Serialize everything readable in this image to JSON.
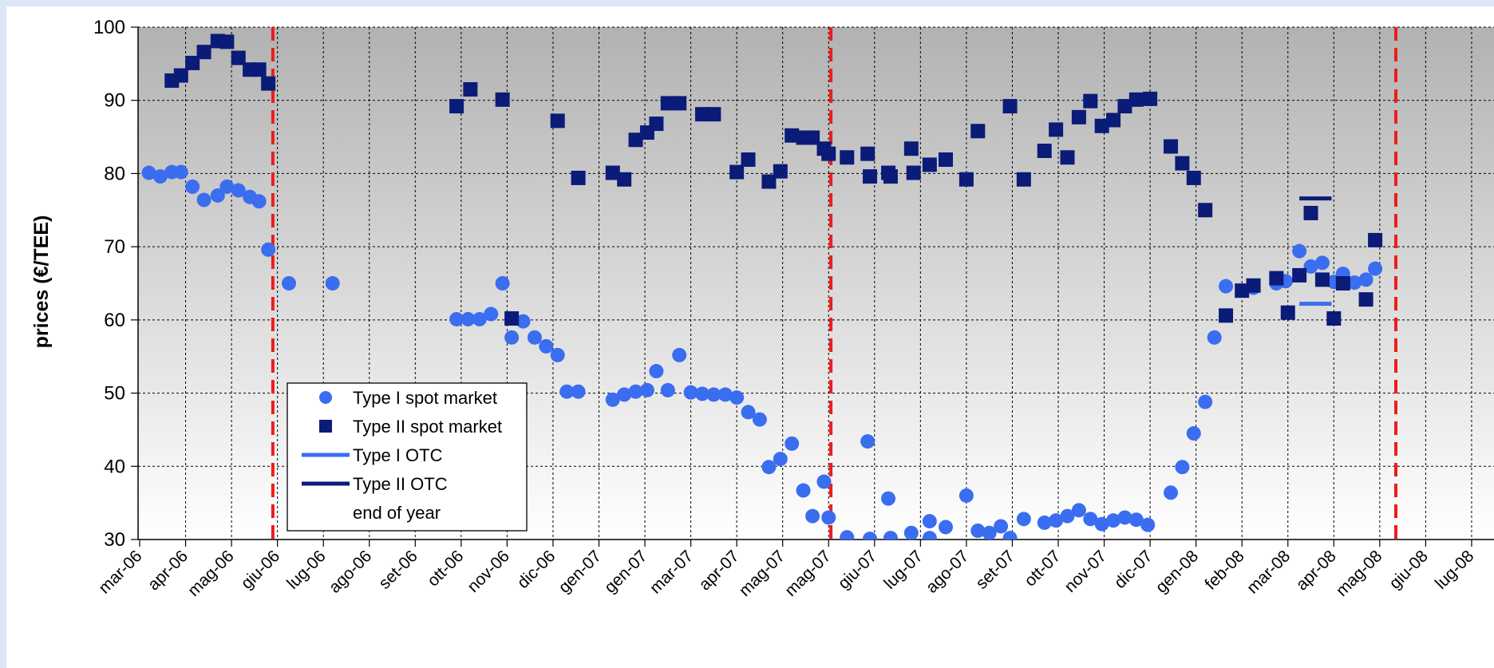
{
  "chart_data": {
    "type": "scatter",
    "title": "",
    "ylabel": "prices (€/TEE)",
    "xlabel": "",
    "ylim": [
      30,
      100
    ],
    "yticks": [
      30,
      40,
      50,
      60,
      70,
      80,
      90,
      100
    ],
    "grid": true,
    "legend_position": "bottom-left",
    "x_categories": [
      "mar-06",
      "apr-06",
      "mag-06",
      "giu-06",
      "lug-06",
      "ago-06",
      "set-06",
      "ott-06",
      "nov-06",
      "dic-06",
      "gen-07",
      "gen-07",
      "mar-07",
      "apr-07",
      "mag-07",
      "mag-07",
      "giu-07",
      "lug-07",
      "ago-07",
      "set-07",
      "ott-07",
      "nov-07",
      "dic-07",
      "gen-08",
      "feb-08",
      "mar-08",
      "apr-08",
      "mag-08",
      "giu-08",
      "lug-08"
    ],
    "colors": {
      "type1": "#3a6df0",
      "type2": "#0b1b78",
      "end_of_year": "#ee1c1c",
      "plot_top": "#b2b2b2",
      "plot_bottom": "#ffffff"
    },
    "legend": [
      {
        "label": "Type I spot market",
        "marker": "circle",
        "color": "#3a6df0"
      },
      {
        "label": "Type II spot market",
        "marker": "square",
        "color": "#0b1b78"
      },
      {
        "label": "Type I OTC",
        "marker": "line",
        "color": "#3a6df0"
      },
      {
        "label": "Type II OTC",
        "marker": "line",
        "color": "#0b1b78"
      },
      {
        "label": "end of year",
        "marker": "none",
        "color": "#ee1c1c"
      }
    ],
    "end_of_year_x": [
      2.9,
      15.05,
      27.35
    ],
    "series": [
      {
        "name": "Type I spot market",
        "marker": "circle",
        "points": [
          [
            0.2,
            80.1
          ],
          [
            0.45,
            79.6
          ],
          [
            0.7,
            80.2
          ],
          [
            0.9,
            80.2
          ],
          [
            1.15,
            78.2
          ],
          [
            1.4,
            76.4
          ],
          [
            1.7,
            77
          ],
          [
            1.9,
            78.2
          ],
          [
            2.15,
            77.7
          ],
          [
            2.4,
            76.8
          ],
          [
            2.6,
            76.2
          ],
          [
            2.8,
            69.6
          ],
          [
            3.25,
            65
          ],
          [
            4.2,
            65
          ],
          [
            6.9,
            60.1
          ],
          [
            7.15,
            60.1
          ],
          [
            7.4,
            60.1
          ],
          [
            7.65,
            60.8
          ],
          [
            7.9,
            65
          ],
          [
            8.1,
            57.6
          ],
          [
            8.35,
            59.8
          ],
          [
            8.6,
            57.6
          ],
          [
            8.85,
            56.4
          ],
          [
            9.1,
            55.2
          ],
          [
            9.3,
            50.2
          ],
          [
            9.55,
            50.2
          ],
          [
            10.3,
            49.1
          ],
          [
            10.55,
            49.8
          ],
          [
            10.8,
            50.2
          ],
          [
            11.05,
            50.4
          ],
          [
            11.25,
            53
          ],
          [
            11.5,
            50.4
          ],
          [
            11.75,
            55.2
          ],
          [
            12,
            50.1
          ],
          [
            12.25,
            49.9
          ],
          [
            12.5,
            49.8
          ],
          [
            12.75,
            49.8
          ],
          [
            13,
            49.4
          ],
          [
            13.25,
            47.4
          ],
          [
            13.5,
            46.4
          ],
          [
            13.7,
            39.9
          ],
          [
            13.95,
            41
          ],
          [
            14.2,
            43.1
          ],
          [
            14.45,
            36.7
          ],
          [
            14.65,
            33.2
          ],
          [
            14.9,
            37.9
          ],
          [
            15.0,
            33
          ],
          [
            15.4,
            30.3
          ],
          [
            15.85,
            43.4
          ],
          [
            15.9,
            30.1
          ],
          [
            16.3,
            35.6
          ],
          [
            16.35,
            30.2
          ],
          [
            16.8,
            30.9
          ],
          [
            17.2,
            32.5
          ],
          [
            17.2,
            30.2
          ],
          [
            17.55,
            31.7
          ],
          [
            18.0,
            36
          ],
          [
            18.25,
            31.2
          ],
          [
            18.5,
            30.9
          ],
          [
            18.75,
            31.8
          ],
          [
            18.95,
            30.2
          ],
          [
            19.25,
            32.8
          ],
          [
            19.7,
            32.3
          ],
          [
            19.95,
            32.6
          ],
          [
            20.2,
            33.2
          ],
          [
            20.45,
            34
          ],
          [
            20.7,
            32.8
          ],
          [
            20.95,
            32.1
          ],
          [
            21.2,
            32.6
          ],
          [
            21.45,
            33
          ],
          [
            21.7,
            32.7
          ],
          [
            21.95,
            32
          ],
          [
            22.45,
            36.4
          ],
          [
            22.7,
            39.9
          ],
          [
            22.95,
            44.5
          ],
          [
            23.2,
            48.8
          ],
          [
            23.4,
            57.6
          ],
          [
            23.65,
            64.6
          ],
          [
            24.25,
            64.4
          ],
          [
            24.75,
            65
          ],
          [
            24.95,
            65.3
          ],
          [
            25.25,
            69.4
          ],
          [
            25.5,
            67.3
          ],
          [
            25.75,
            67.8
          ],
          [
            26.0,
            65.2
          ],
          [
            26.2,
            66.3
          ],
          [
            26.45,
            65.1
          ],
          [
            26.7,
            65.5
          ],
          [
            26.9,
            67
          ]
        ]
      },
      {
        "name": "Type II spot market",
        "marker": "square",
        "points": [
          [
            0.7,
            92.7
          ],
          [
            0.9,
            93.4
          ],
          [
            1.15,
            95.1
          ],
          [
            1.4,
            96.6
          ],
          [
            1.7,
            98.1
          ],
          [
            1.9,
            98
          ],
          [
            2.15,
            95.8
          ],
          [
            2.4,
            94.2
          ],
          [
            2.6,
            94.2
          ],
          [
            2.8,
            92.3
          ],
          [
            6.9,
            89.2
          ],
          [
            7.2,
            91.5
          ],
          [
            7.9,
            90.1
          ],
          [
            8.1,
            60.2
          ],
          [
            9.1,
            87.2
          ],
          [
            9.55,
            79.4
          ],
          [
            10.3,
            80.1
          ],
          [
            10.55,
            79.2
          ],
          [
            10.8,
            84.6
          ],
          [
            11.05,
            85.6
          ],
          [
            11.25,
            86.8
          ],
          [
            11.5,
            89.6
          ],
          [
            11.75,
            89.6
          ],
          [
            12.25,
            88.1
          ],
          [
            12.5,
            88.1
          ],
          [
            13,
            80.2
          ],
          [
            13.25,
            81.9
          ],
          [
            13.7,
            78.9
          ],
          [
            13.95,
            80.3
          ],
          [
            14.2,
            85.2
          ],
          [
            14.45,
            84.9
          ],
          [
            14.65,
            84.9
          ],
          [
            14.9,
            83.4
          ],
          [
            15.0,
            82.7
          ],
          [
            15.4,
            82.2
          ],
          [
            15.85,
            82.7
          ],
          [
            15.9,
            79.6
          ],
          [
            16.3,
            80.1
          ],
          [
            16.35,
            79.6
          ],
          [
            16.8,
            83.4
          ],
          [
            16.85,
            80.1
          ],
          [
            17.2,
            81.2
          ],
          [
            17.55,
            81.9
          ],
          [
            18.0,
            79.2
          ],
          [
            18.25,
            85.8
          ],
          [
            18.95,
            89.2
          ],
          [
            19.25,
            79.2
          ],
          [
            19.7,
            83.1
          ],
          [
            19.95,
            86
          ],
          [
            20.2,
            82.2
          ],
          [
            20.45,
            87.7
          ],
          [
            20.7,
            89.9
          ],
          [
            20.95,
            86.5
          ],
          [
            21.2,
            87.3
          ],
          [
            21.45,
            89.2
          ],
          [
            21.7,
            90.1
          ],
          [
            22.0,
            90.2
          ],
          [
            22.45,
            83.7
          ],
          [
            22.7,
            81.4
          ],
          [
            22.95,
            79.4
          ],
          [
            23.2,
            75
          ],
          [
            23.65,
            60.6
          ],
          [
            24.0,
            64
          ],
          [
            24.25,
            64.7
          ],
          [
            24.75,
            65.7
          ],
          [
            25.0,
            61
          ],
          [
            25.25,
            66.1
          ],
          [
            25.5,
            74.6
          ],
          [
            25.75,
            65.5
          ],
          [
            26.0,
            60.2
          ],
          [
            26.2,
            65
          ],
          [
            26.7,
            62.8
          ],
          [
            26.9,
            70.9
          ]
        ]
      },
      {
        "name": "Type I OTC",
        "marker": "line",
        "segments": [
          [
            25.25,
            25.95,
            62.2
          ]
        ]
      },
      {
        "name": "Type II OTC",
        "marker": "line",
        "segments": [
          [
            25.25,
            25.95,
            76.6
          ]
        ]
      }
    ]
  }
}
